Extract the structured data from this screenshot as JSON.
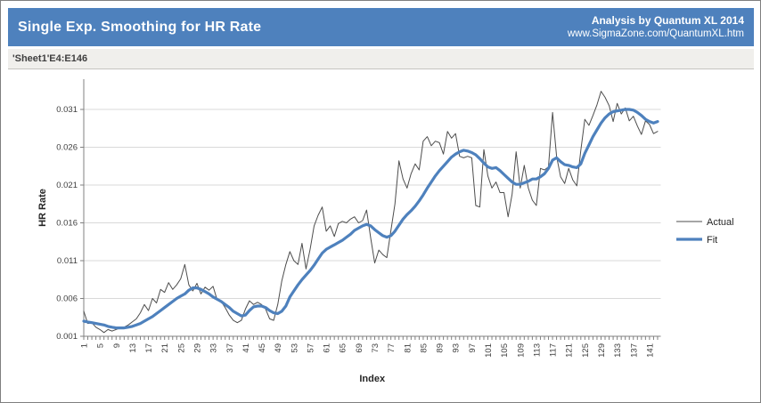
{
  "header": {
    "title": "Single Exp. Smoothing for HR Rate",
    "analysis_line1": "Analysis by Quantum XL 2014",
    "analysis_line2": "www.SigmaZone.com/QuantumXL.htm"
  },
  "range_bar": {
    "reference": "'Sheet1'E4:E146"
  },
  "colors": {
    "header_bg": "#4e81bd",
    "header_text": "#ffffff",
    "range_bar_bg": "#f0efec",
    "plot_bg": "#ffffff",
    "gridline": "#d9d9d9",
    "axis": "#808080",
    "tick_text": "#404040",
    "actual_line": "#4d4d4d",
    "fit_line": "#4e81bd"
  },
  "chart_data": {
    "type": "line",
    "title": "Single Exp. Smoothing for HR Rate",
    "xlabel": "Index",
    "ylabel": "HR Rate",
    "x_range": {
      "start": 1,
      "end": 143,
      "step": 1
    },
    "x_tick_label_every": 4,
    "x_tick_labels": [
      1,
      5,
      9,
      13,
      17,
      21,
      25,
      29,
      33,
      37,
      41,
      45,
      49,
      53,
      57,
      61,
      65,
      69,
      73,
      77,
      81,
      85,
      89,
      93,
      97,
      101,
      105,
      109,
      113,
      117,
      121,
      125,
      129,
      133,
      137,
      141
    ],
    "y_tick_labels": [
      "0.001",
      "0.006",
      "0.011",
      "0.016",
      "0.021",
      "0.026",
      "0.031"
    ],
    "y_ticks": [
      0.001,
      0.006,
      0.011,
      0.016,
      0.021,
      0.026,
      0.031
    ],
    "ylim": [
      0.001,
      0.035
    ],
    "grid": "horizontal",
    "legend_position": "right",
    "series": [
      {
        "name": "Actual",
        "color": "#4d4d4d",
        "stroke_width": 1,
        "values": [
          0.0043,
          0.0027,
          0.0028,
          0.0022,
          0.0019,
          0.0015,
          0.0019,
          0.0017,
          0.0019,
          0.0021,
          0.0022,
          0.0025,
          0.0029,
          0.0033,
          0.0041,
          0.0052,
          0.0044,
          0.006,
          0.0054,
          0.0072,
          0.0068,
          0.0081,
          0.0072,
          0.0078,
          0.0086,
          0.0105,
          0.0078,
          0.007,
          0.008,
          0.0066,
          0.0075,
          0.0071,
          0.0076,
          0.0058,
          0.0056,
          0.0048,
          0.0038,
          0.0031,
          0.0028,
          0.0031,
          0.0046,
          0.0057,
          0.0052,
          0.0055,
          0.0052,
          0.0046,
          0.0033,
          0.0031,
          0.0052,
          0.0083,
          0.0105,
          0.0122,
          0.011,
          0.0105,
          0.0133,
          0.0099,
          0.0125,
          0.0156,
          0.017,
          0.0181,
          0.0149,
          0.0156,
          0.0142,
          0.0159,
          0.0162,
          0.016,
          0.0165,
          0.0168,
          0.016,
          0.0163,
          0.0177,
          0.014,
          0.0107,
          0.0124,
          0.0118,
          0.0114,
          0.015,
          0.0185,
          0.0242,
          0.0218,
          0.0206,
          0.0225,
          0.0238,
          0.023,
          0.0268,
          0.0274,
          0.0262,
          0.0268,
          0.0266,
          0.0251,
          0.0281,
          0.0272,
          0.0278,
          0.0248,
          0.0246,
          0.0248,
          0.0246,
          0.0183,
          0.0181,
          0.0257,
          0.0222,
          0.0206,
          0.0214,
          0.02,
          0.02,
          0.0168,
          0.0198,
          0.0254,
          0.0206,
          0.0236,
          0.0206,
          0.019,
          0.0183,
          0.0232,
          0.023,
          0.0234,
          0.0306,
          0.0248,
          0.0221,
          0.0212,
          0.0232,
          0.0217,
          0.0209,
          0.0256,
          0.0297,
          0.0289,
          0.0302,
          0.0316,
          0.0334,
          0.0326,
          0.0315,
          0.0294,
          0.0318,
          0.0304,
          0.0312,
          0.0295,
          0.0301,
          0.0288,
          0.0277,
          0.0295,
          0.029,
          0.0278,
          0.0281
        ]
      },
      {
        "name": "Fit",
        "color": "#4e81bd",
        "stroke_width": 3.2,
        "values": [
          0.003,
          0.0029,
          0.0028,
          0.0027,
          0.0026,
          0.0025,
          0.0023,
          0.0022,
          0.0021,
          0.0021,
          0.0021,
          0.0022,
          0.0023,
          0.0025,
          0.0027,
          0.003,
          0.0033,
          0.0036,
          0.004,
          0.0044,
          0.0048,
          0.0052,
          0.0056,
          0.006,
          0.0063,
          0.0066,
          0.0071,
          0.0074,
          0.0074,
          0.0072,
          0.0069,
          0.0066,
          0.0062,
          0.0059,
          0.0056,
          0.0052,
          0.0048,
          0.0043,
          0.004,
          0.0037,
          0.0038,
          0.0044,
          0.0049,
          0.005,
          0.005,
          0.0048,
          0.0044,
          0.0041,
          0.004,
          0.0043,
          0.005,
          0.0062,
          0.007,
          0.0078,
          0.0085,
          0.0091,
          0.0097,
          0.0104,
          0.0112,
          0.012,
          0.0125,
          0.0128,
          0.0131,
          0.0134,
          0.0137,
          0.0141,
          0.0145,
          0.015,
          0.0153,
          0.0156,
          0.0158,
          0.0156,
          0.0151,
          0.0147,
          0.0143,
          0.0141,
          0.0143,
          0.0149,
          0.0157,
          0.0165,
          0.0171,
          0.0176,
          0.0182,
          0.0189,
          0.0197,
          0.0206,
          0.0214,
          0.0222,
          0.0229,
          0.0235,
          0.0241,
          0.0247,
          0.0251,
          0.0254,
          0.0256,
          0.0255,
          0.0253,
          0.025,
          0.0245,
          0.0239,
          0.0234,
          0.0232,
          0.0233,
          0.0229,
          0.0224,
          0.0219,
          0.0214,
          0.0211,
          0.0211,
          0.0213,
          0.0215,
          0.0218,
          0.0218,
          0.0221,
          0.0225,
          0.0232,
          0.0243,
          0.0246,
          0.0241,
          0.0237,
          0.0236,
          0.0234,
          0.0233,
          0.0238,
          0.0252,
          0.0263,
          0.0274,
          0.0283,
          0.0292,
          0.0299,
          0.0304,
          0.0307,
          0.0308,
          0.0309,
          0.031,
          0.031,
          0.0309,
          0.0306,
          0.0302,
          0.0297,
          0.0294,
          0.0292,
          0.0294
        ]
      }
    ]
  }
}
